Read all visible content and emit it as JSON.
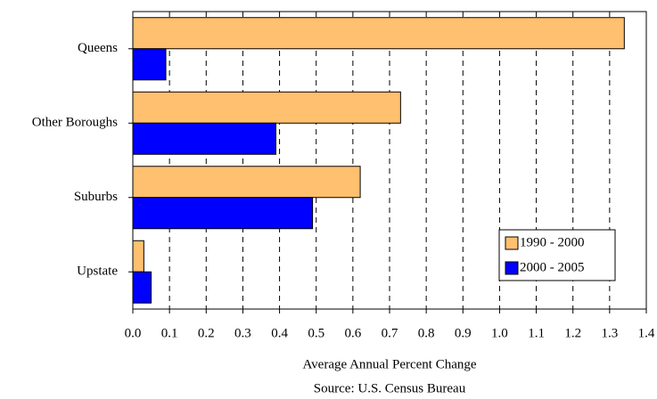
{
  "chart_data": {
    "type": "barh",
    "xlabel": "Average Annual Percent Change",
    "source": "Source: U.S. Census Bureau",
    "categories": [
      "Queens",
      "Other Boroughs",
      "Suburbs",
      "Upstate"
    ],
    "series": [
      {
        "name": "1990 - 2000",
        "color": "#ffc06f",
        "values": [
          1.34,
          0.73,
          0.62,
          0.03
        ]
      },
      {
        "name": "2000 - 2005",
        "color": "#0000ff",
        "values": [
          0.09,
          0.39,
          0.49,
          0.05
        ]
      }
    ],
    "xlim": [
      0,
      1.4
    ],
    "xticks": [
      {
        "value": 0,
        "label": "0.0"
      },
      0.1,
      0.2,
      0.3,
      0.4,
      0.5,
      0.6,
      0.7,
      0.8,
      0.9,
      {
        "value": 1,
        "label": "1.0"
      },
      1.1,
      1.2,
      1.3,
      1.4
    ],
    "grid": true,
    "legend": "lower right"
  }
}
